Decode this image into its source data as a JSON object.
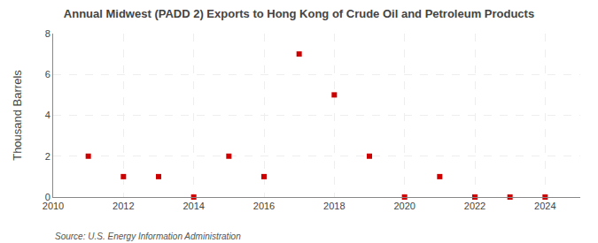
{
  "chart_data": {
    "type": "scatter",
    "title": "Annual Midwest (PADD 2) Exports to Hong Kong of Crude Oil and Petroleum Products",
    "ylabel": "Thousand Barrels",
    "annotations": [
      "Source: U.S. Energy Information Administration"
    ],
    "x": [
      2011,
      2012,
      2013,
      2014,
      2015,
      2016,
      2017,
      2018,
      2019,
      2020,
      2021,
      2022,
      2023,
      2024
    ],
    "values": [
      2,
      1,
      1,
      0,
      2,
      1,
      7,
      5,
      2,
      0,
      1,
      0,
      0,
      0
    ],
    "color": "#cc0000",
    "marker": "square",
    "xlim": [
      2010,
      2025
    ],
    "xticks": [
      2010,
      2012,
      2014,
      2016,
      2018,
      2020,
      2022,
      2024
    ],
    "ylim": [
      0,
      8
    ],
    "yticks": [
      0,
      2,
      4,
      6,
      8
    ],
    "grid": true
  }
}
